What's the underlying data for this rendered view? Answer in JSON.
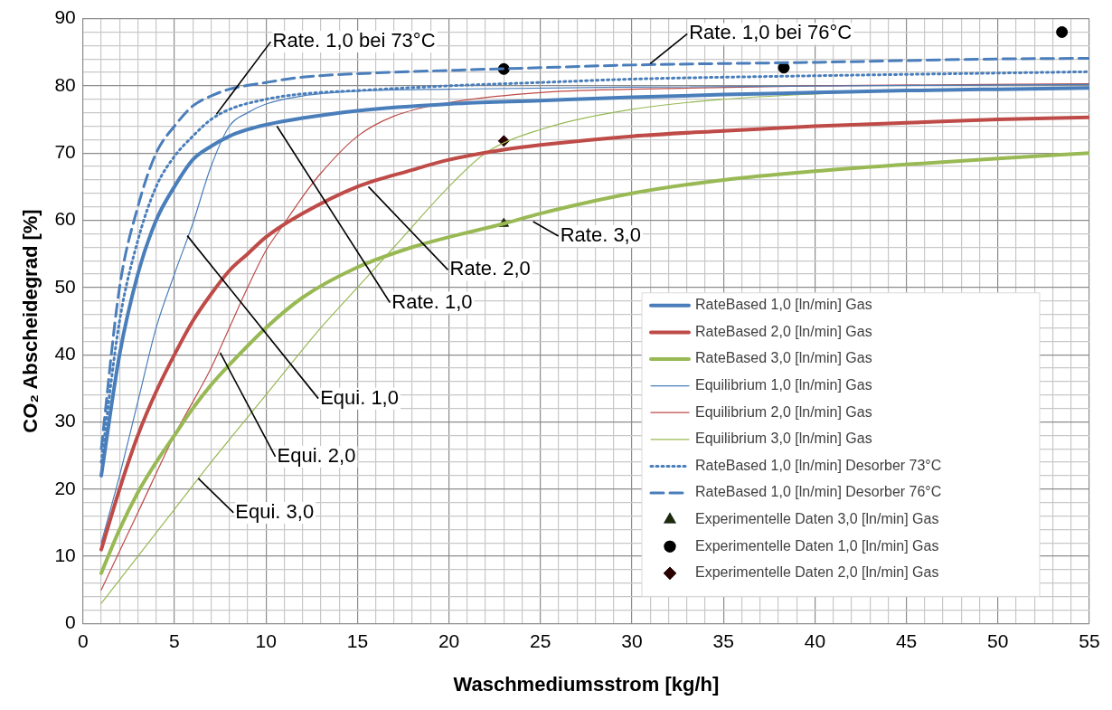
{
  "chart_data": {
    "type": "line",
    "xlabel": "Waschmediumsstrom [kg/h]",
    "ylabel": "CO₂ Abscheidegrad [%]",
    "xlim": [
      0,
      55
    ],
    "ylim": [
      0,
      90
    ],
    "xticks": [
      0,
      {
        "value": 1,
        "label": null
      },
      {
        "value": 2,
        "label": null
      },
      {
        "value": 3,
        "label": null
      },
      {
        "value": 4,
        "label": null
      },
      5,
      {
        "value": 6,
        "label": null
      },
      {
        "value": 7,
        "label": null
      },
      {
        "value": 8,
        "label": null
      },
      {
        "value": 9,
        "label": null
      },
      10,
      {
        "value": 11,
        "label": null
      },
      {
        "value": 12,
        "label": null
      },
      {
        "value": 13,
        "label": null
      },
      {
        "value": 14,
        "label": null
      },
      15,
      {
        "value": 16,
        "label": null
      },
      {
        "value": 17,
        "label": null
      },
      {
        "value": 18,
        "label": null
      },
      {
        "value": 19,
        "label": null
      },
      20,
      {
        "value": 21,
        "label": null
      },
      {
        "value": 22,
        "label": null
      },
      {
        "value": 23,
        "label": null
      },
      {
        "value": 24,
        "label": null
      },
      25,
      {
        "value": 26,
        "label": null
      },
      {
        "value": 27,
        "label": null
      },
      {
        "value": 28,
        "label": null
      },
      {
        "value": 29,
        "label": null
      },
      30,
      {
        "value": 31,
        "label": null
      },
      {
        "value": 32,
        "label": null
      },
      {
        "value": 33,
        "label": null
      },
      {
        "value": 34,
        "label": null
      },
      35,
      {
        "value": 36,
        "label": null
      },
      {
        "value": 37,
        "label": null
      },
      {
        "value": 38,
        "label": null
      },
      {
        "value": 39,
        "label": null
      },
      40,
      {
        "value": 41,
        "label": null
      },
      {
        "value": 42,
        "label": null
      },
      {
        "value": 43,
        "label": null
      },
      {
        "value": 44,
        "label": null
      },
      45,
      {
        "value": 46,
        "label": null
      },
      {
        "value": 47,
        "label": null
      },
      {
        "value": 48,
        "label": null
      },
      {
        "value": 49,
        "label": null
      },
      50,
      {
        "value": 51,
        "label": null
      },
      {
        "value": 52,
        "label": null
      },
      {
        "value": 53,
        "label": null
      },
      {
        "value": 54,
        "label": null
      },
      55
    ],
    "yticks": [
      0,
      {
        "value": 2,
        "label": null
      },
      {
        "value": 4,
        "label": null
      },
      {
        "value": 6,
        "label": null
      },
      {
        "value": 8,
        "label": null
      },
      10,
      {
        "value": 12,
        "label": null
      },
      {
        "value": 14,
        "label": null
      },
      {
        "value": 16,
        "label": null
      },
      {
        "value": 18,
        "label": null
      },
      20,
      {
        "value": 22,
        "label": null
      },
      {
        "value": 24,
        "label": null
      },
      {
        "value": 26,
        "label": null
      },
      {
        "value": 28,
        "label": null
      },
      30,
      {
        "value": 32,
        "label": null
      },
      {
        "value": 34,
        "label": null
      },
      {
        "value": 36,
        "label": null
      },
      {
        "value": 38,
        "label": null
      },
      40,
      {
        "value": 42,
        "label": null
      },
      {
        "value": 44,
        "label": null
      },
      {
        "value": 46,
        "label": null
      },
      {
        "value": 48,
        "label": null
      },
      50,
      {
        "value": 52,
        "label": null
      },
      {
        "value": 54,
        "label": null
      },
      {
        "value": 56,
        "label": null
      },
      {
        "value": 58,
        "label": null
      },
      60,
      {
        "value": 62,
        "label": null
      },
      {
        "value": 64,
        "label": null
      },
      {
        "value": 66,
        "label": null
      },
      {
        "value": 68,
        "label": null
      },
      70,
      {
        "value": 72,
        "label": null
      },
      {
        "value": 74,
        "label": null
      },
      {
        "value": 76,
        "label": null
      },
      {
        "value": 78,
        "label": null
      },
      80,
      {
        "value": 82,
        "label": null
      },
      {
        "value": 84,
        "label": null
      },
      {
        "value": 86,
        "label": null
      },
      {
        "value": 88,
        "label": null
      },
      90
    ],
    "grid": true,
    "legend": "bottom right",
    "marker": "none",
    "series": [
      {
        "name": "RateBased 1,0 [ln/min] Gas",
        "color": "#4a7ebb",
        "x": [
          1,
          2,
          3,
          4,
          5,
          6,
          7,
          8,
          9,
          10,
          12,
          15,
          20,
          25,
          30,
          35,
          40,
          45,
          50,
          55
        ],
        "values": [
          22,
          40,
          52,
          60,
          65,
          69,
          71,
          72.5,
          73.5,
          74.2,
          75.2,
          76.3,
          77.3,
          77.8,
          78.3,
          78.7,
          79,
          79.3,
          79.5,
          79.7
        ]
      },
      {
        "name": "RateBased 2,0 [ln/min] Gas",
        "color": "#be4b48",
        "x": [
          1,
          2,
          3,
          4,
          5,
          6,
          7,
          8,
          9,
          10,
          12,
          15,
          18,
          20,
          23,
          25,
          30,
          35,
          40,
          45,
          50,
          55
        ],
        "values": [
          11,
          20,
          28,
          34.5,
          40,
          45,
          49,
          52.5,
          55,
          57.5,
          61,
          65,
          67.5,
          69,
          70.5,
          71.2,
          72.5,
          73.3,
          74,
          74.5,
          75,
          75.3
        ]
      },
      {
        "name": "RateBased 3,0 [ln/min] Gas",
        "color": "#98b954",
        "x": [
          1,
          2,
          3,
          4,
          5,
          6,
          7,
          8,
          10,
          12,
          15,
          18,
          20,
          23,
          25,
          30,
          35,
          40,
          45,
          50,
          55
        ],
        "values": [
          7.5,
          14,
          19.5,
          24,
          28,
          32,
          35.5,
          38.5,
          44,
          48.5,
          53,
          56,
          57.5,
          59.5,
          61,
          64,
          66,
          67.3,
          68.3,
          69.2,
          70
        ]
      },
      {
        "name": "Equilibrium 1,0 [ln/min] Gas",
        "color": "#4a7ebb",
        "x": [
          1,
          2,
          3,
          4,
          5,
          6,
          7,
          8,
          9,
          10,
          12,
          15,
          20,
          30,
          55
        ],
        "values": [
          12,
          22,
          33,
          44,
          52,
          59.5,
          68,
          74,
          76,
          77.3,
          78.5,
          79.2,
          79.5,
          79.8,
          80.2
        ]
      },
      {
        "name": "Equilibrium 2,0 [ln/min] Gas",
        "color": "#be4b48",
        "x": [
          1,
          3,
          5,
          7,
          8,
          9,
          10,
          11,
          12,
          13,
          15,
          17,
          20,
          25,
          30,
          40,
          55
        ],
        "values": [
          5,
          16.5,
          28,
          38,
          44,
          50,
          55.5,
          59.5,
          63.5,
          67,
          72.5,
          75.5,
          77.5,
          79,
          79.5,
          80,
          80.3
        ]
      },
      {
        "name": "Equilibrium 3,0 [ln/min] Gas",
        "color": "#98b954",
        "x": [
          1,
          5,
          7,
          10,
          13,
          15,
          17,
          20,
          22,
          25,
          30,
          35,
          40,
          45,
          55
        ],
        "values": [
          3,
          17,
          24,
          34,
          44,
          50,
          56,
          65,
          70,
          73.5,
          76.5,
          78,
          78.8,
          79.3,
          79.6
        ]
      },
      {
        "name": "RateBased 1,0 [ln/min] Desorber 73°C",
        "color": "#4a7ebb",
        "line_style": "dotted",
        "x": [
          1,
          2,
          3,
          4,
          5,
          6,
          7,
          8,
          10,
          12,
          15,
          20,
          25,
          30,
          40,
          50,
          55
        ],
        "values": [
          24,
          45,
          57,
          65,
          69.5,
          72.5,
          75,
          76.5,
          78,
          78.8,
          79.3,
          80,
          80.5,
          81,
          81.5,
          81.9,
          82.1
        ]
      },
      {
        "name": "RateBased 1,0 [ln/min] Desorber 76°C",
        "color": "#4a7ebb",
        "line_style": "dashed",
        "x": [
          1,
          2,
          3,
          4,
          5,
          6,
          7,
          8,
          10,
          12,
          15,
          20,
          25,
          30,
          40,
          50,
          55
        ],
        "values": [
          26,
          50,
          62,
          70,
          74,
          77,
          78.5,
          79.5,
          80.5,
          81.3,
          81.8,
          82.3,
          82.7,
          83.1,
          83.5,
          84,
          84.1
        ]
      },
      {
        "name": "Experimentelle Daten 3,0 [ln/min] Gas",
        "type": "scatter",
        "marker": "triangle",
        "color": "#1e2a0a",
        "x": [
          23
        ],
        "values": [
          59.5
        ]
      },
      {
        "name": "Experimentelle Daten 1,0 [ln/min] Gas",
        "type": "scatter",
        "marker": "circle",
        "color": "#000000",
        "x": [
          23,
          38.3,
          53.5
        ],
        "values": [
          82.5,
          82.7,
          88
        ]
      },
      {
        "name": "Experimentelle Daten 2,0 [ln/min] Gas",
        "type": "scatter",
        "marker": "diamond",
        "color": "#2a0000",
        "x": [
          23
        ],
        "values": [
          71.8
        ]
      }
    ],
    "annotations": [
      {
        "text": "Rate. 1,0 bei 73°C",
        "x": 7.3,
        "y": 75.8
      },
      {
        "text": "Rate. 1,0 bei 76°C",
        "x": 31,
        "y": 83.3
      },
      {
        "text": "Rate. 1,0",
        "x": 10.6,
        "y": 74
      },
      {
        "text": "Rate. 2,0",
        "x": 15.6,
        "y": 65
      },
      {
        "text": "Rate. 3,0",
        "x": 24.6,
        "y": 59.8
      },
      {
        "text": "Equi. 1,0",
        "x": 5.7,
        "y": 57.7
      },
      {
        "text": "Equi. 2,0",
        "x": 7.5,
        "y": 40.3
      },
      {
        "text": "Equi. 3,0",
        "x": 6.3,
        "y": 21.6
      }
    ]
  }
}
